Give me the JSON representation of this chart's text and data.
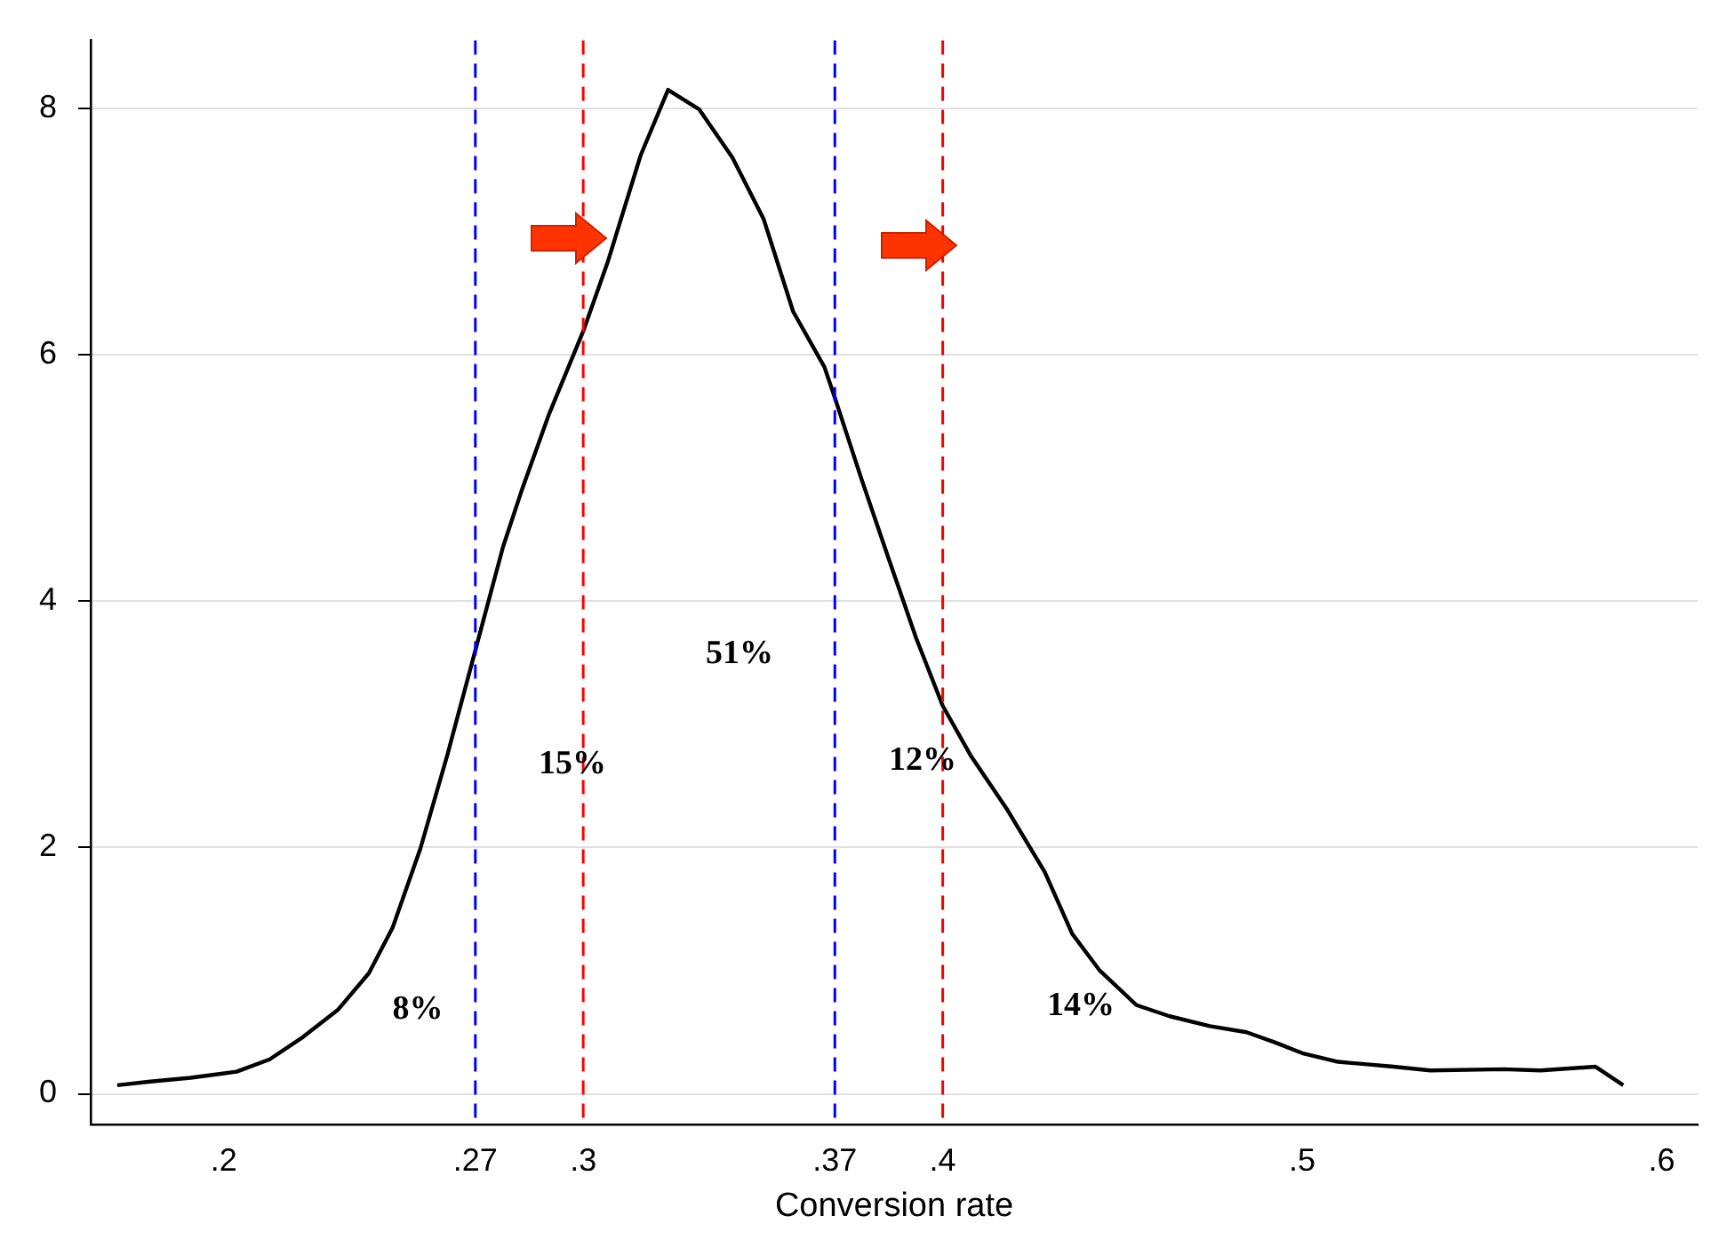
{
  "chart_data": {
    "type": "line",
    "xlabel": "Conversion rate",
    "x": [
      0.1704,
      0.1796,
      0.1908,
      0.2036,
      0.2128,
      0.222,
      0.2317,
      0.2404,
      0.247,
      0.2547,
      0.2623,
      0.27,
      0.2777,
      0.2828,
      0.2904,
      0.3,
      0.3068,
      0.316,
      0.3236,
      0.3323,
      0.3415,
      0.3502,
      0.3584,
      0.3671,
      0.37,
      0.3773,
      0.3849,
      0.3926,
      0.4,
      0.4077,
      0.4181,
      0.4284,
      0.436,
      0.4437,
      0.4539,
      0.4631,
      0.4743,
      0.4845,
      0.4922,
      0.5,
      0.51,
      0.5254,
      0.5356,
      0.556,
      0.5663,
      0.5816,
      0.5893
    ],
    "values": [
      0.07,
      0.1,
      0.13,
      0.18,
      0.28,
      0.46,
      0.68,
      0.98,
      1.35,
      1.99,
      2.76,
      3.6,
      4.44,
      4.89,
      5.51,
      6.19,
      6.75,
      7.62,
      8.15,
      7.99,
      7.6,
      7.1,
      6.35,
      5.9,
      5.65,
      5.0,
      4.35,
      3.7,
      3.15,
      2.75,
      2.3,
      1.8,
      1.3,
      1.0,
      0.72,
      0.63,
      0.55,
      0.5,
      0.42,
      0.33,
      0.26,
      0.22,
      0.19,
      0.2,
      0.19,
      0.22,
      0.07
    ],
    "color": "#000000",
    "marker": "none",
    "line_style": "solid",
    "xlim": [
      0.163,
      0.61
    ],
    "ylim": [
      -0.25,
      8.55
    ],
    "xticks": [
      {
        "value": 0.2,
        "label": ".2"
      },
      {
        "value": 0.27,
        "label": ".27"
      },
      {
        "value": 0.3,
        "label": ".3"
      },
      {
        "value": 0.37,
        "label": ".37"
      },
      {
        "value": 0.4,
        "label": ".4"
      },
      {
        "value": 0.5,
        "label": ".5"
      },
      {
        "value": 0.6,
        "label": ".6"
      }
    ],
    "yticks": [
      0,
      2,
      4,
      6,
      8
    ],
    "grid": "y",
    "legend": false,
    "ref_lines": [
      {
        "axis": "x",
        "value": 0.27,
        "color": "#0000ff",
        "line_style": "dashed"
      },
      {
        "axis": "x",
        "value": 0.3,
        "color": "#ff0000",
        "line_style": "dashed"
      },
      {
        "axis": "x",
        "value": 0.37,
        "color": "#0000ff",
        "line_style": "dashed"
      },
      {
        "axis": "x",
        "value": 0.4,
        "color": "#ff0000",
        "line_style": "dashed"
      }
    ],
    "annotations": [
      "8%",
      "15%",
      "51%",
      "12%",
      "14%"
    ]
  }
}
